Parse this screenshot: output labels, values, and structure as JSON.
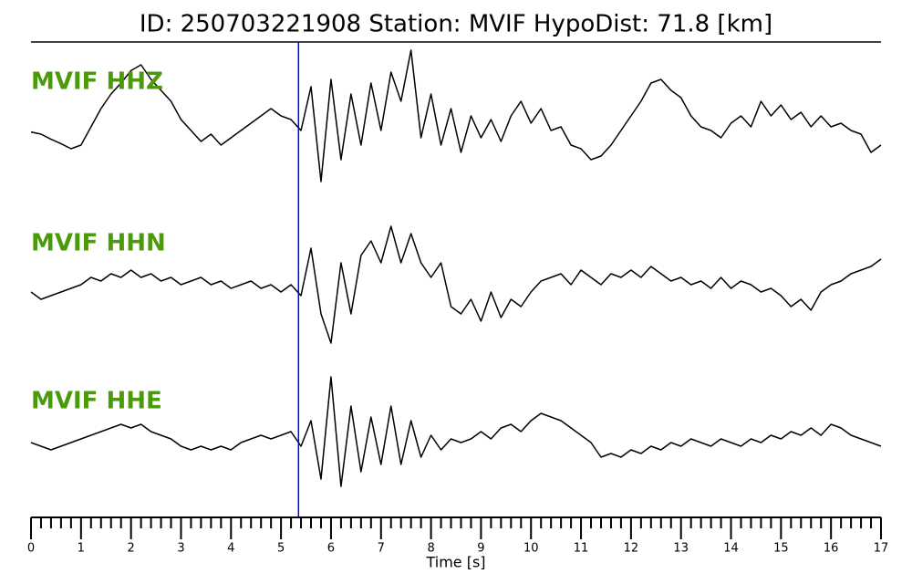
{
  "chart_data": {
    "type": "line",
    "title": "ID: 250703221908   Station: MVIF   HypoDist:    71.8 [km]",
    "xlabel": "Time [s]",
    "x": [
      0,
      0.2,
      0.4,
      0.6,
      0.8,
      1,
      1.2,
      1.4,
      1.6,
      1.8,
      2,
      2.2,
      2.4,
      2.6,
      2.8,
      3,
      3.2,
      3.4,
      3.6,
      3.8,
      4,
      4.2,
      4.4,
      4.6,
      4.8,
      5,
      5.2,
      5.4,
      5.6,
      5.8,
      6,
      6.2,
      6.4,
      6.6,
      6.8,
      7,
      7.2,
      7.4,
      7.6,
      7.8,
      8,
      8.2,
      8.4,
      8.6,
      8.8,
      9,
      9.2,
      9.4,
      9.6,
      9.8,
      10,
      10.2,
      10.4,
      10.6,
      10.8,
      11,
      11.2,
      11.4,
      11.6,
      11.8,
      12,
      12.2,
      12.4,
      12.6,
      12.8,
      13,
      13.2,
      13.4,
      13.6,
      13.8,
      14,
      14.2,
      14.4,
      14.6,
      14.8,
      15,
      15.2,
      15.4,
      15.6,
      15.8,
      16,
      16.2,
      16.4,
      16.6,
      16.8,
      17
    ],
    "xlim": [
      0,
      17
    ],
    "xticks": [
      0,
      1,
      2,
      3,
      4,
      5,
      6,
      7,
      8,
      9,
      10,
      11,
      12,
      13,
      14,
      15,
      16,
      17
    ],
    "xminorticks": [
      0.2,
      0.4,
      0.6,
      0.8,
      1.2,
      1.4,
      1.6,
      1.8,
      2.2,
      2.4,
      2.6,
      2.8,
      3.2,
      3.4,
      3.6,
      3.8,
      4.2,
      4.4,
      4.6,
      4.8,
      5.2,
      5.4,
      5.6,
      5.8,
      6.2,
      6.4,
      6.6,
      6.8,
      7.2,
      7.4,
      7.6,
      7.8,
      8.2,
      8.4,
      8.6,
      8.8,
      9.2,
      9.4,
      9.6,
      9.8,
      10.2,
      10.4,
      10.6,
      10.8,
      11.2,
      11.4,
      11.6,
      11.8,
      12.2,
      12.4,
      12.6,
      12.8,
      13.2,
      13.4,
      13.6,
      13.8,
      14.2,
      14.4,
      14.6,
      14.8,
      15.2,
      15.4,
      15.6,
      15.8,
      16.2,
      16.4,
      16.6,
      16.8
    ],
    "ylim": [
      -1,
      1
    ],
    "label_color": "#4a9a0a",
    "vline": {
      "x": 5.35,
      "color": "#0000ff"
    },
    "series": [
      {
        "name": "MVIF HHZ",
        "color": "#000000",
        "values": [
          -0.12,
          -0.15,
          -0.22,
          -0.28,
          -0.35,
          -0.3,
          -0.05,
          0.2,
          0.4,
          0.55,
          0.72,
          0.8,
          0.6,
          0.45,
          0.3,
          0.05,
          -0.1,
          -0.25,
          -0.15,
          -0.3,
          -0.2,
          -0.1,
          0.0,
          0.1,
          0.2,
          0.1,
          0.05,
          -0.1,
          0.5,
          -0.8,
          0.6,
          -0.5,
          0.4,
          -0.3,
          0.55,
          -0.1,
          0.7,
          0.3,
          1.0,
          -0.2,
          0.4,
          -0.3,
          0.2,
          -0.4,
          0.1,
          -0.2,
          0.05,
          -0.25,
          0.1,
          0.3,
          0.0,
          0.2,
          -0.1,
          -0.05,
          -0.3,
          -0.35,
          -0.5,
          -0.45,
          -0.3,
          -0.1,
          0.1,
          0.3,
          0.55,
          0.6,
          0.45,
          0.35,
          0.1,
          -0.05,
          -0.1,
          -0.2,
          0.0,
          0.1,
          -0.05,
          0.3,
          0.1,
          0.25,
          0.05,
          0.15,
          -0.05,
          0.1,
          -0.05,
          0.0,
          -0.1,
          -0.15,
          -0.4,
          -0.3
        ]
      },
      {
        "name": "MVIF HHN",
        "color": "#000000",
        "values": [
          -0.1,
          -0.2,
          -0.15,
          -0.1,
          -0.05,
          0.0,
          0.1,
          0.05,
          0.15,
          0.1,
          0.2,
          0.1,
          0.15,
          0.05,
          0.1,
          0.0,
          0.05,
          0.1,
          0.0,
          0.05,
          -0.05,
          0.0,
          0.05,
          -0.05,
          0.0,
          -0.1,
          0.0,
          -0.15,
          0.5,
          -0.4,
          -0.8,
          0.3,
          -0.4,
          0.4,
          0.6,
          0.3,
          0.8,
          0.3,
          0.7,
          0.3,
          0.1,
          0.3,
          -0.3,
          -0.4,
          -0.2,
          -0.5,
          -0.1,
          -0.45,
          -0.2,
          -0.3,
          -0.1,
          0.05,
          0.1,
          0.15,
          0.0,
          0.2,
          0.1,
          0.0,
          0.15,
          0.1,
          0.2,
          0.1,
          0.25,
          0.15,
          0.05,
          0.1,
          0.0,
          0.05,
          -0.05,
          0.1,
          -0.05,
          0.05,
          0.0,
          -0.1,
          -0.05,
          -0.15,
          -0.3,
          -0.2,
          -0.35,
          -0.1,
          0.0,
          0.05,
          0.15,
          0.2,
          0.25,
          0.35
        ]
      },
      {
        "name": "MVIF HHE",
        "color": "#000000",
        "values": [
          0.0,
          -0.05,
          -0.1,
          -0.05,
          0.0,
          0.05,
          0.1,
          0.15,
          0.2,
          0.25,
          0.2,
          0.25,
          0.15,
          0.1,
          0.05,
          -0.05,
          -0.1,
          -0.05,
          -0.1,
          -0.05,
          -0.1,
          0.0,
          0.05,
          0.1,
          0.05,
          0.1,
          0.15,
          -0.05,
          0.3,
          -0.5,
          0.9,
          -0.6,
          0.5,
          -0.4,
          0.35,
          -0.3,
          0.5,
          -0.3,
          0.3,
          -0.2,
          0.1,
          -0.1,
          0.05,
          0.0,
          0.05,
          0.15,
          0.05,
          0.2,
          0.25,
          0.15,
          0.3,
          0.4,
          0.35,
          0.3,
          0.2,
          0.1,
          0.0,
          -0.2,
          -0.15,
          -0.2,
          -0.1,
          -0.15,
          -0.05,
          -0.1,
          0.0,
          -0.05,
          0.05,
          0.0,
          -0.05,
          0.05,
          0.0,
          -0.05,
          0.05,
          0.0,
          0.1,
          0.05,
          0.15,
          0.1,
          0.2,
          0.1,
          0.25,
          0.2,
          0.1,
          0.05,
          0.0,
          -0.05
        ]
      }
    ]
  }
}
